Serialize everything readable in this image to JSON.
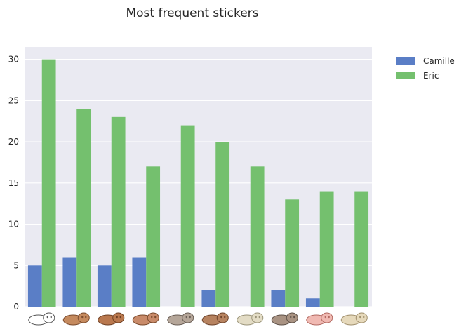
{
  "chart_data": {
    "type": "bar",
    "title": "Most frequent stickers",
    "xlabel": "",
    "ylabel": "",
    "ylim": [
      0,
      31.5
    ],
    "yticks": [
      0,
      5,
      10,
      15,
      20,
      25,
      30
    ],
    "grid": true,
    "legend_position": "outside-top-right",
    "categories": [
      "sticker-1",
      "sticker-2",
      "sticker-3",
      "sticker-4",
      "sticker-5",
      "sticker-6",
      "sticker-7",
      "sticker-8",
      "sticker-9",
      "sticker-10"
    ],
    "series": [
      {
        "name": "Camille",
        "color": "#5a7ec6",
        "values": [
          5,
          6,
          5,
          6,
          0,
          2,
          0,
          2,
          1,
          0
        ]
      },
      {
        "name": "Eric",
        "color": "#74c06e",
        "values": [
          30,
          24,
          23,
          17,
          22,
          20,
          17,
          13,
          14,
          14
        ]
      }
    ],
    "background_color": "#eaeaf2",
    "grid_color": "#ffffff"
  }
}
